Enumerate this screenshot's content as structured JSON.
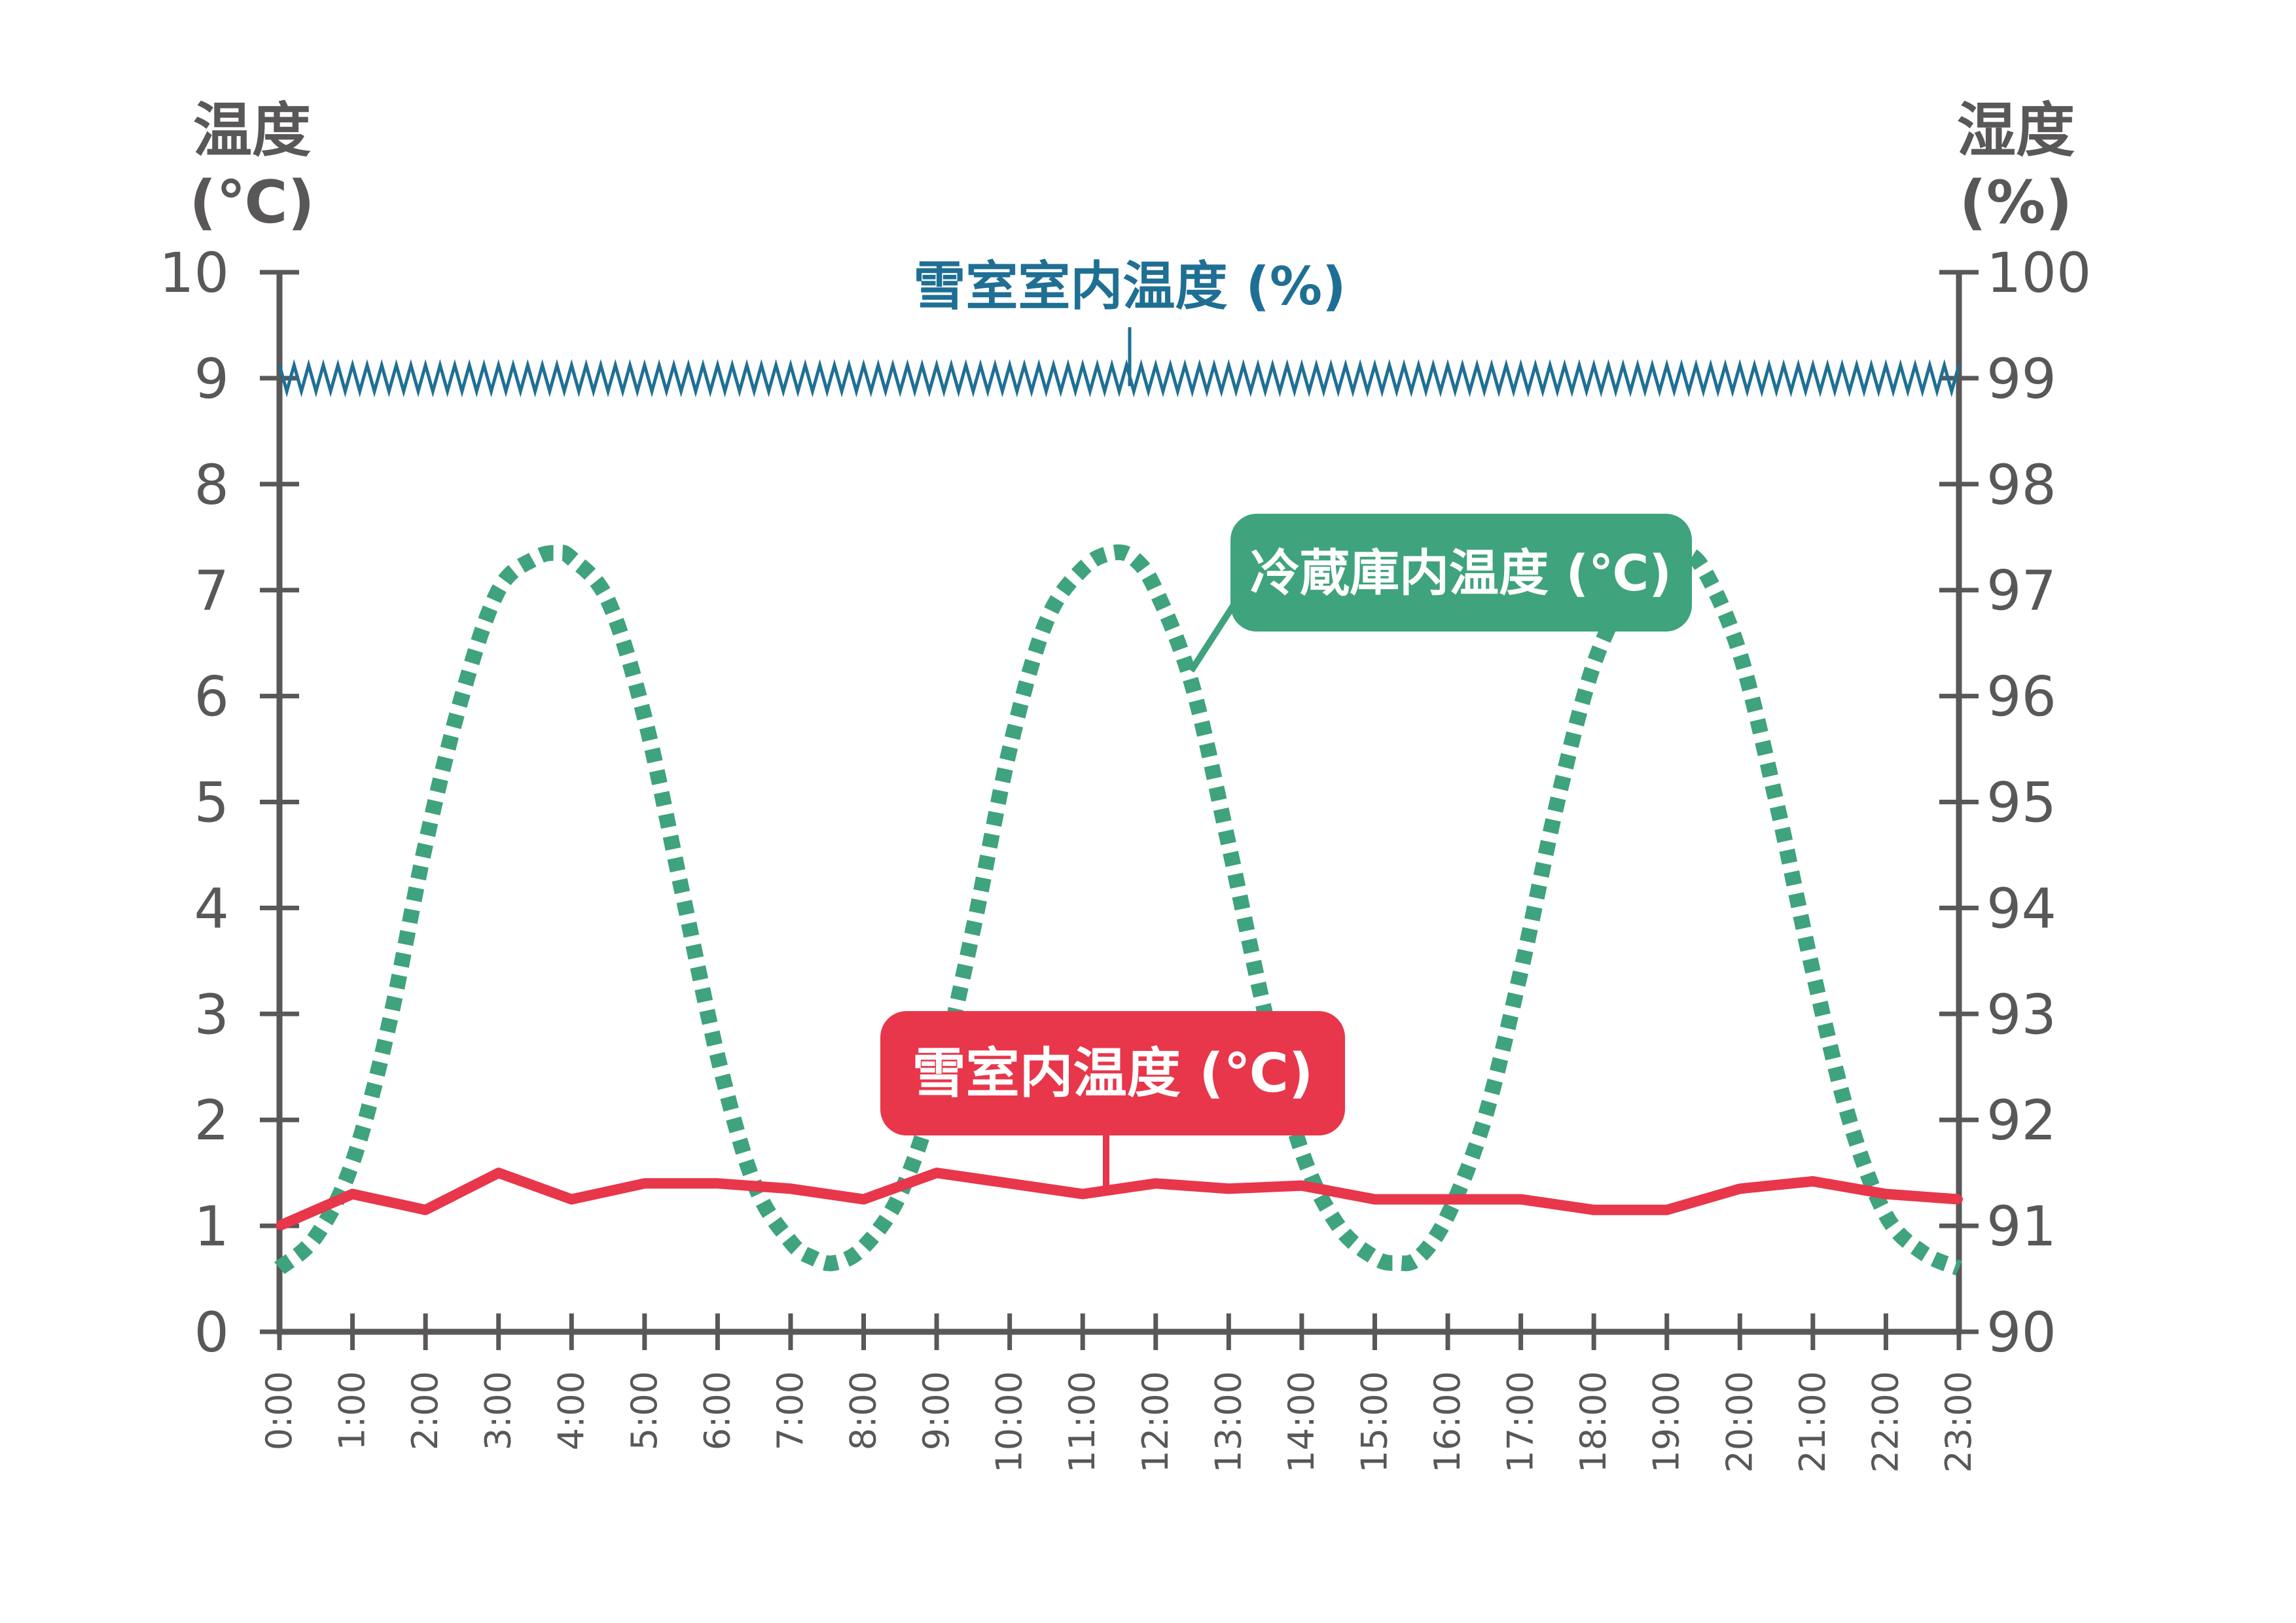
{
  "chart_data": {
    "type": "line",
    "axes": {
      "left_title_line1": "温度",
      "left_title_line2": "(℃)",
      "right_title_line1": "湿度",
      "right_title_line2": "(%)",
      "left_ticks": [
        "0",
        "1",
        "2",
        "3",
        "4",
        "5",
        "6",
        "7",
        "8",
        "9",
        "10"
      ],
      "right_ticks": [
        "90",
        "91",
        "92",
        "93",
        "94",
        "95",
        "96",
        "97",
        "98",
        "99",
        "100"
      ],
      "left_ylim": [
        0,
        10
      ],
      "right_ylim": [
        90,
        100
      ],
      "grid": false
    },
    "categories": [
      "0:00",
      "1:00",
      "2:00",
      "3:00",
      "4:00",
      "5:00",
      "6:00",
      "7:00",
      "8:00",
      "9:00",
      "10:00",
      "11:00",
      "12:00",
      "13:00",
      "14:00",
      "15:00",
      "16:00",
      "17:00",
      "18:00",
      "19:00",
      "20:00",
      "21:00",
      "22:00",
      "23:00"
    ],
    "series": [
      {
        "name": "雪室室内温度 (%)",
        "axis": "right",
        "style": "zigzag",
        "color": "#1f6f94",
        "values": [
          98.9,
          99.0,
          98.9,
          99.0,
          98.9,
          99.0,
          98.9,
          99.0,
          98.9,
          99.0,
          98.9,
          99.0,
          98.9,
          99.0,
          98.9,
          99.0,
          98.9,
          99.0,
          98.9,
          99.0,
          98.9,
          99.0,
          98.9,
          99.0
        ]
      },
      {
        "name": "冷蔵庫内温度 (℃)",
        "axis": "left",
        "style": "dotted",
        "color": "#3fa37d",
        "x": [
          0,
          0.5,
          1,
          1.5,
          2,
          2.5,
          3,
          3.5,
          3.8,
          4,
          4.5,
          5,
          5.5,
          6,
          6.5,
          7,
          7.3,
          7.6,
          8,
          8.5,
          9,
          9.5,
          10,
          10.5,
          11,
          11.4,
          11.7,
          12,
          12.5,
          13,
          13.5,
          14,
          14.5,
          15,
          15.3,
          15.6,
          16,
          16.5,
          17,
          17.5,
          18,
          18.5,
          19,
          19.2,
          19.5,
          20,
          20.5,
          21,
          21.5,
          22,
          22.5,
          23
        ],
        "values": [
          0.6,
          0.9,
          1.6,
          2.9,
          4.6,
          6.0,
          7.0,
          7.3,
          7.35,
          7.3,
          6.9,
          5.8,
          4.2,
          2.6,
          1.4,
          0.85,
          0.7,
          0.65,
          0.8,
          1.3,
          2.3,
          3.8,
          5.5,
          6.7,
          7.2,
          7.35,
          7.3,
          7.0,
          6.1,
          4.6,
          3.0,
          1.7,
          1.0,
          0.7,
          0.65,
          0.7,
          1.1,
          2.0,
          3.4,
          5.0,
          6.3,
          7.0,
          7.3,
          7.35,
          7.2,
          6.4,
          5.0,
          3.4,
          2.0,
          1.1,
          0.75,
          0.6
        ]
      },
      {
        "name": "雪室内温度 (℃)",
        "axis": "left",
        "style": "solid",
        "color": "#e8364a",
        "values": [
          1.0,
          1.3,
          1.15,
          1.5,
          1.25,
          1.4,
          1.4,
          1.35,
          1.25,
          1.5,
          1.4,
          1.3,
          1.4,
          1.35,
          1.38,
          1.25,
          1.25,
          1.25,
          1.15,
          1.15,
          1.35,
          1.42,
          1.3,
          1.25
        ]
      }
    ],
    "annotations": {
      "humidity_label": "雪室室内温度 (%)",
      "fridge_label": "冷蔵庫内温度 (℃)",
      "snow_label": "雪室内温度 (℃)"
    }
  }
}
